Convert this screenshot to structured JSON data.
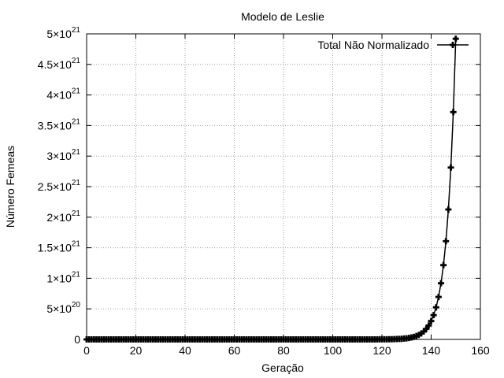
{
  "chart_data": {
    "type": "line",
    "title": "Modelo de Leslie",
    "xlabel": "Geração",
    "ylabel": "Número Femeas",
    "xlim": [
      0,
      160
    ],
    "ylim": [
      0,
      5e+21
    ],
    "grid": true,
    "legend_position": "top-right",
    "x_ticks": [
      {
        "value": 0,
        "label": "0"
      },
      {
        "value": 20,
        "label": "20"
      },
      {
        "value": 40,
        "label": "40"
      },
      {
        "value": 60,
        "label": "60"
      },
      {
        "value": 80,
        "label": "80"
      },
      {
        "value": 100,
        "label": "100"
      },
      {
        "value": 120,
        "label": "120"
      },
      {
        "value": 140,
        "label": "140"
      },
      {
        "value": 160,
        "label": "160"
      }
    ],
    "y_ticks": [
      {
        "value": 0,
        "mant": "0",
        "exp": ""
      },
      {
        "value": 5e+20,
        "mant": "5×10",
        "exp": "20"
      },
      {
        "value": 1e+21,
        "mant": "1×10",
        "exp": "21"
      },
      {
        "value": 1.5e+21,
        "mant": "1.5×10",
        "exp": "21"
      },
      {
        "value": 2e+21,
        "mant": "2×10",
        "exp": "21"
      },
      {
        "value": 2.5e+21,
        "mant": "2.5×10",
        "exp": "21"
      },
      {
        "value": 3e+21,
        "mant": "3×10",
        "exp": "21"
      },
      {
        "value": 3.5e+21,
        "mant": "3.5×10",
        "exp": "21"
      },
      {
        "value": 4e+21,
        "mant": "4×10",
        "exp": "21"
      },
      {
        "value": 4.5e+21,
        "mant": "4.5×10",
        "exp": "21"
      },
      {
        "value": 5e+21,
        "mant": "5×10",
        "exp": "21"
      }
    ],
    "series": [
      {
        "name": "Total Não Normalizado",
        "color": "#000000",
        "x_range": [
          0,
          150
        ],
        "y_first": 3000.0,
        "y_last": 4.92e+21
      }
    ]
  }
}
